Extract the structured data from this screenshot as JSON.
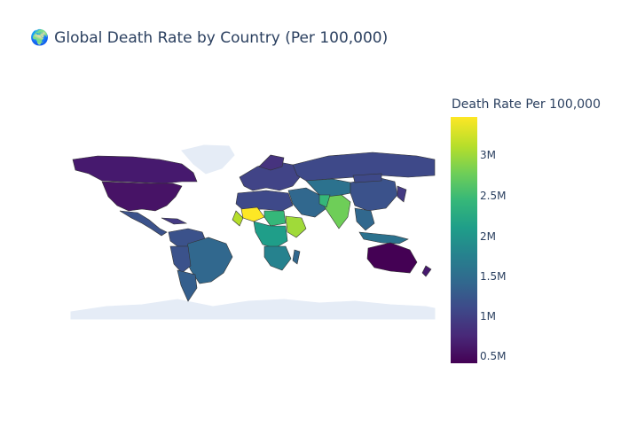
{
  "title": "Global Death Rate by Country (Per 100,000)",
  "title_icon": "globe-americas-icon",
  "colorbar": {
    "title": "Death Rate Per 100,000",
    "colorscale": "viridis",
    "ticks": [
      "3M",
      "2.5M",
      "2M",
      "1.5M",
      "1M",
      "0.5M"
    ]
  },
  "map": {
    "projection": "natural-earth",
    "land_color": "#e5ecf6",
    "border_color": "#333333"
  }
}
